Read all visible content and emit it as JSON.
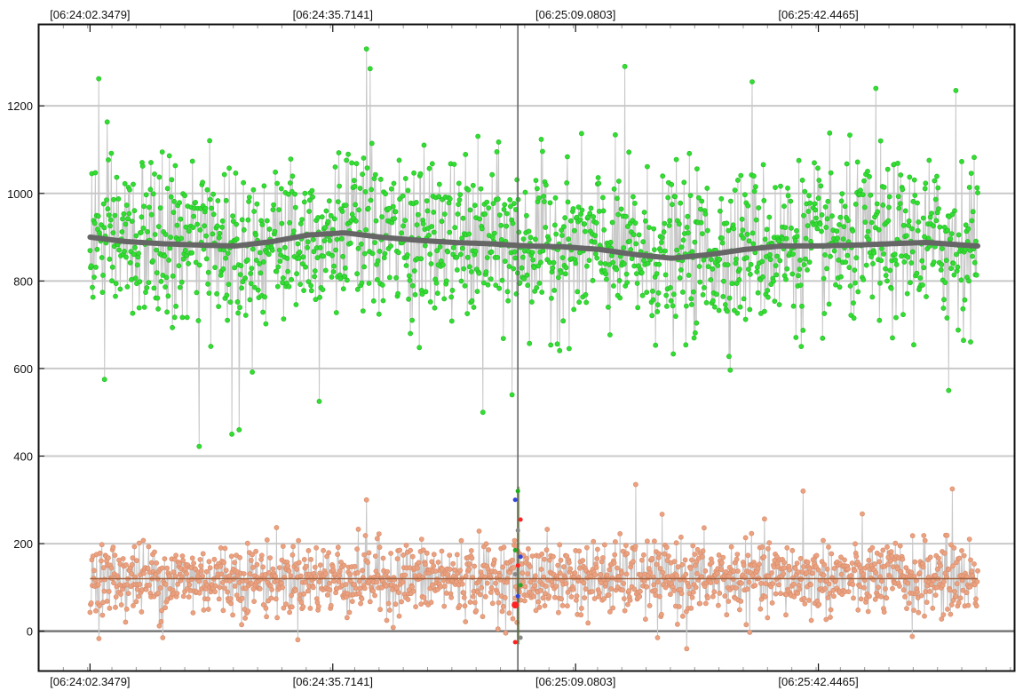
{
  "chart_data": {
    "type": "scatter",
    "title": "",
    "x_axis": {
      "type": "time",
      "tick_labels": [
        "[06:24:02.3479]",
        "[06:24:35.7141]",
        "[06:25:09.0803]",
        "[06:25:42.4465]"
      ],
      "tick_seconds": [
        0,
        33.3662,
        66.7324,
        100.0986
      ],
      "range_seconds": [
        -7,
        127
      ],
      "data_range_seconds": [
        0,
        122
      ],
      "labels_top": true,
      "labels_bottom": true
    },
    "y_axis": {
      "ticks": [
        0,
        200,
        400,
        600,
        800,
        1000,
        1200
      ],
      "ylim": [
        -90,
        1385
      ]
    },
    "cursor": {
      "x_seconds": 58.8
    },
    "grid": true,
    "series": [
      {
        "role": "high-band",
        "point_color": "#33dd33",
        "line_color": "#c8c8c8",
        "mean_level": 880,
        "spread": 120,
        "extremes": [
          {
            "x": 1.2,
            "y": 1262
          },
          {
            "x": 2.0,
            "y": 575
          },
          {
            "x": 15.0,
            "y": 422
          },
          {
            "x": 19.5,
            "y": 450
          },
          {
            "x": 20.5,
            "y": 460
          },
          {
            "x": 38.0,
            "y": 1330
          },
          {
            "x": 38.5,
            "y": 1285
          },
          {
            "x": 31.5,
            "y": 525
          },
          {
            "x": 54.0,
            "y": 500
          },
          {
            "x": 58.0,
            "y": 540
          },
          {
            "x": 73.5,
            "y": 1290
          },
          {
            "x": 91.0,
            "y": 1255
          },
          {
            "x": 108.0,
            "y": 1240
          },
          {
            "x": 119.0,
            "y": 1235
          },
          {
            "x": 118.0,
            "y": 550
          }
        ],
        "trend": [
          {
            "x": 0,
            "y": 900
          },
          {
            "x": 5,
            "y": 890
          },
          {
            "x": 10,
            "y": 885
          },
          {
            "x": 15,
            "y": 882
          },
          {
            "x": 20,
            "y": 880
          },
          {
            "x": 25,
            "y": 890
          },
          {
            "x": 30,
            "y": 905
          },
          {
            "x": 35,
            "y": 910
          },
          {
            "x": 40,
            "y": 900
          },
          {
            "x": 45,
            "y": 893
          },
          {
            "x": 50,
            "y": 888
          },
          {
            "x": 55,
            "y": 885
          },
          {
            "x": 60,
            "y": 880
          },
          {
            "x": 65,
            "y": 878
          },
          {
            "x": 70,
            "y": 872
          },
          {
            "x": 75,
            "y": 860
          },
          {
            "x": 80,
            "y": 852
          },
          {
            "x": 85,
            "y": 860
          },
          {
            "x": 90,
            "y": 872
          },
          {
            "x": 95,
            "y": 880
          },
          {
            "x": 100,
            "y": 880
          },
          {
            "x": 105,
            "y": 882
          },
          {
            "x": 110,
            "y": 885
          },
          {
            "x": 115,
            "y": 888
          },
          {
            "x": 120,
            "y": 882
          },
          {
            "x": 122,
            "y": 880
          }
        ],
        "trend_color": "#666666"
      },
      {
        "role": "low-band",
        "point_color": "#eaa281",
        "point_edge": "#d98a68",
        "line_color": "#c8c8c8",
        "mean_level": 120,
        "spread": 55,
        "extremes": [
          {
            "x": 75.0,
            "y": 335
          },
          {
            "x": 118.5,
            "y": 325
          },
          {
            "x": 98.0,
            "y": 320
          },
          {
            "x": 38.0,
            "y": 300
          },
          {
            "x": 10.0,
            "y": -15
          },
          {
            "x": 78.0,
            "y": -15
          },
          {
            "x": 82.0,
            "y": -40
          },
          {
            "x": 113.0,
            "y": -12
          }
        ],
        "mean_line": 120,
        "mean_line_color": "#a0603e"
      }
    ],
    "cursor_markers": {
      "colors": [
        "#ff2222",
        "#3344dd",
        "#22aa22",
        "#888888"
      ],
      "values": [
        60,
        80,
        105,
        130,
        150,
        170,
        185,
        230,
        255,
        300,
        320,
        -15,
        -25
      ]
    }
  }
}
